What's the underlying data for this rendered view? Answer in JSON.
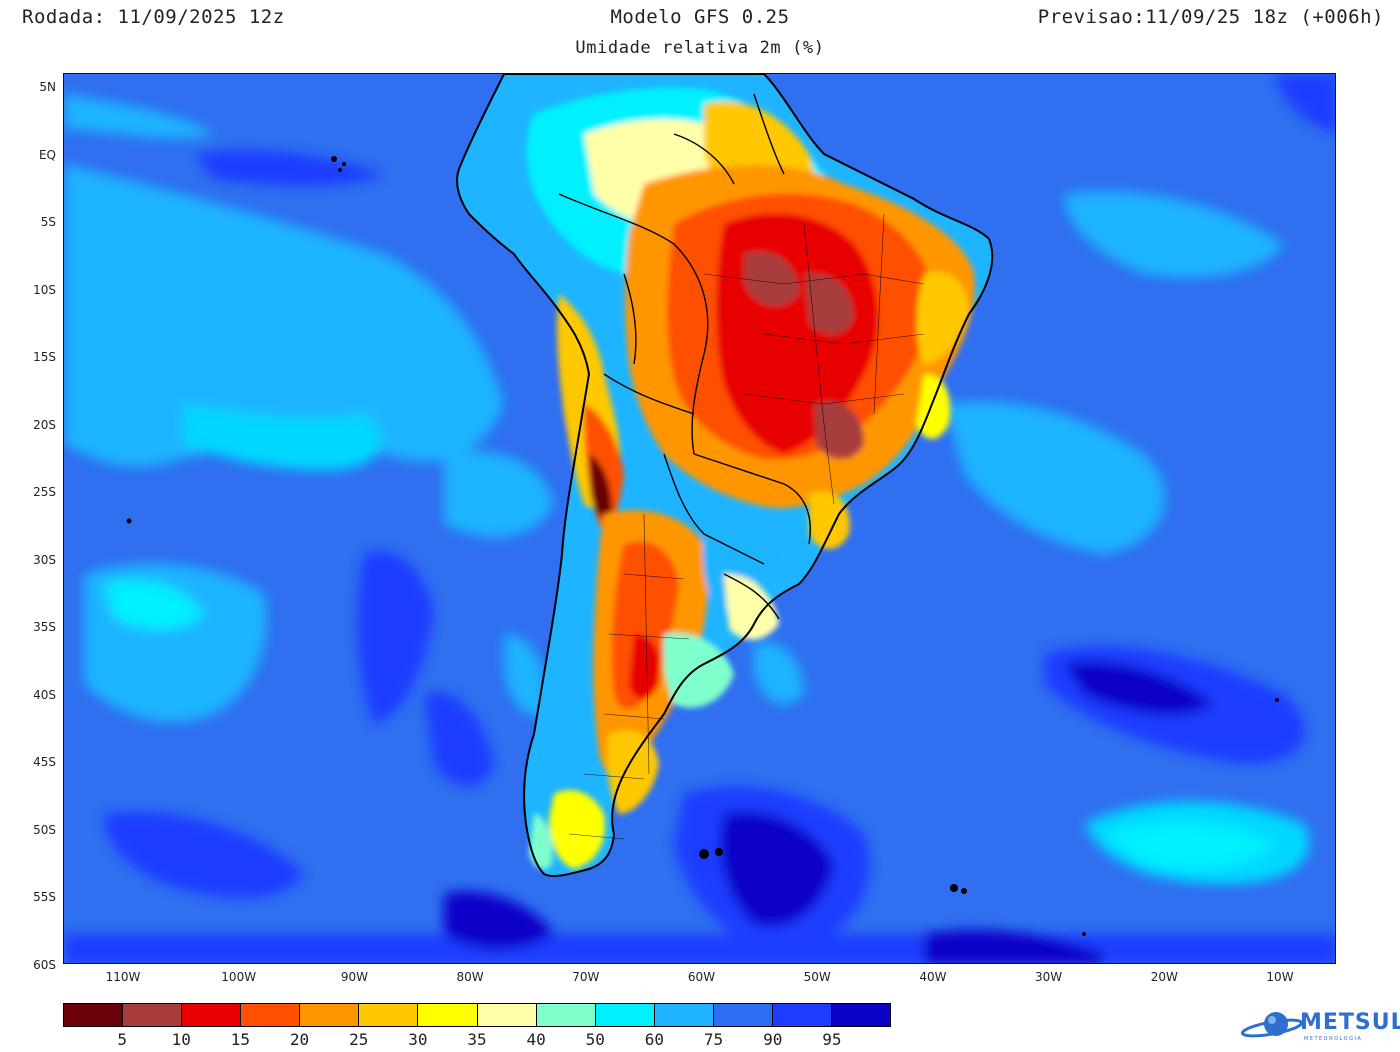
{
  "header": {
    "run": "Rodada: 11/09/2025 12z",
    "model": "Modelo GFS 0.25",
    "forecast": "Previsao:11/09/25 18z (+006h)",
    "subtitle": "Umidade relativa 2m (%)"
  },
  "map": {
    "lat_labels": [
      "5N",
      "EQ",
      "5S",
      "10S",
      "15S",
      "20S",
      "25S",
      "30S",
      "35S",
      "40S",
      "45S",
      "50S",
      "55S",
      "60S"
    ],
    "lon_labels": [
      "110W",
      "100W",
      "90W",
      "80W",
      "70W",
      "60W",
      "50W",
      "40W",
      "30W",
      "20W",
      "10W"
    ],
    "ocean_color": "#2f6ff0",
    "land_dry_color": "#e40000"
  },
  "colorbar": {
    "colors": [
      "#6b0006",
      "#a83c3c",
      "#e80000",
      "#ff5000",
      "#ff9600",
      "#ffc800",
      "#ffff00",
      "#ffffaa",
      "#7fffcc",
      "#00f0ff",
      "#1eb4ff",
      "#2d6ef5",
      "#1e3cff",
      "#0a00c8"
    ],
    "ticks": [
      "5",
      "10",
      "15",
      "20",
      "25",
      "30",
      "35",
      "40",
      "50",
      "60",
      "75",
      "90",
      "95"
    ]
  },
  "logo": {
    "name": "METSUL",
    "tagline": "METEOROLOGIA"
  }
}
